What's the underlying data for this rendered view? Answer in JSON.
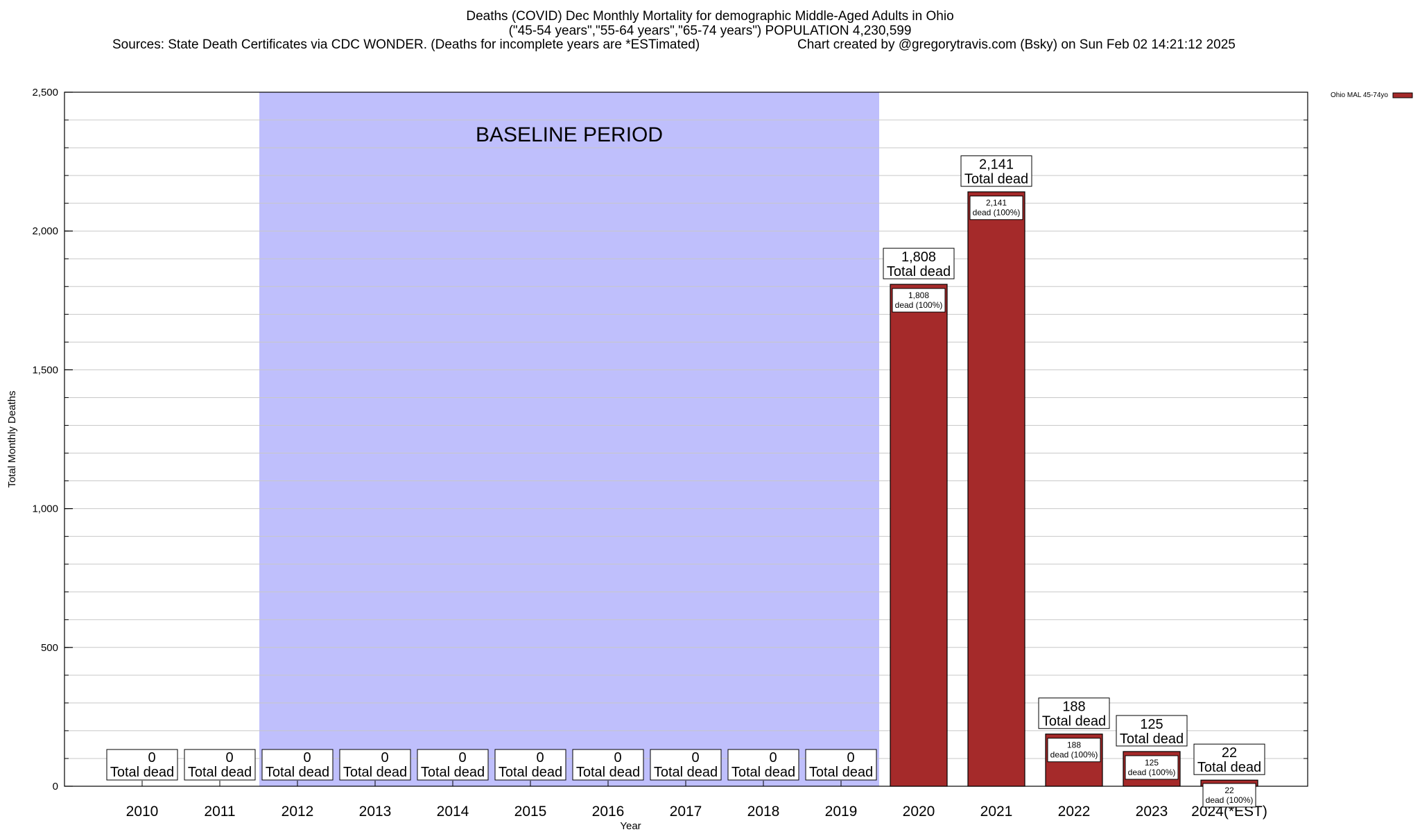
{
  "header": {
    "title_line1": "Deaths (COVID) Dec Monthly Mortality for demographic Middle-Aged Adults in Ohio",
    "title_line2": "(\"45-54 years\",\"55-64 years\",\"65-74 years\") POPULATION 4,230,599",
    "sources": "Sources: State Death Certificates via CDC WONDER. (Deaths for incomplete years are *ESTimated)",
    "credit": "Chart created by @gregorytravis.com (Bsky) on Sun Feb 02 14:21:12 2025"
  },
  "chart_data": {
    "type": "bar",
    "title": "Deaths (COVID) Dec Monthly Mortality for demographic Middle-Aged Adults in Ohio",
    "xlabel": "Year",
    "ylabel": "Total Monthly Deaths",
    "ylim": [
      0,
      2500
    ],
    "yticks": [
      0,
      500,
      1000,
      1500,
      2000,
      2500
    ],
    "ytick_labels": [
      "0",
      "500",
      "1,000",
      "1,500",
      "2,000",
      "2,500"
    ],
    "grid": true,
    "legend_position": "top-right",
    "categories": [
      "2010",
      "2011",
      "2012",
      "2013",
      "2014",
      "2015",
      "2016",
      "2017",
      "2018",
      "2019",
      "2020",
      "2021",
      "2022",
      "2023",
      "2024(*EST)"
    ],
    "series": [
      {
        "name": "Ohio MAL 45-74yo",
        "color": "#a52a2a",
        "values": [
          0,
          0,
          0,
          0,
          0,
          0,
          0,
          0,
          0,
          0,
          1808,
          2141,
          188,
          125,
          22
        ]
      }
    ],
    "total_labels": [
      "0",
      "0",
      "0",
      "0",
      "0",
      "0",
      "0",
      "0",
      "0",
      "0",
      "1,808",
      "2,141",
      "188",
      "125",
      "22"
    ],
    "total_suffix": "Total dead",
    "inner_labels": [
      "",
      "",
      "",
      "",
      "",
      "",
      "",
      "",
      "",
      "",
      "1,808",
      "2,141",
      "188",
      "125",
      "22"
    ],
    "inner_suffix": "dead (100%)",
    "baseline": {
      "label": "BASELINE PERIOD",
      "start": "2012",
      "end": "2019",
      "color": "#bfbffc"
    }
  }
}
